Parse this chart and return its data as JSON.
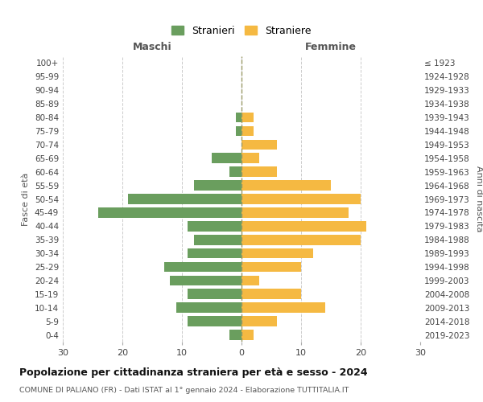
{
  "age_groups": [
    "0-4",
    "5-9",
    "10-14",
    "15-19",
    "20-24",
    "25-29",
    "30-34",
    "35-39",
    "40-44",
    "45-49",
    "50-54",
    "55-59",
    "60-64",
    "65-69",
    "70-74",
    "75-79",
    "80-84",
    "85-89",
    "90-94",
    "95-99",
    "100+"
  ],
  "birth_years": [
    "2019-2023",
    "2014-2018",
    "2009-2013",
    "2004-2008",
    "1999-2003",
    "1994-1998",
    "1989-1993",
    "1984-1988",
    "1979-1983",
    "1974-1978",
    "1969-1973",
    "1964-1968",
    "1959-1963",
    "1954-1958",
    "1949-1953",
    "1944-1948",
    "1939-1943",
    "1934-1938",
    "1929-1933",
    "1924-1928",
    "≤ 1923"
  ],
  "males": [
    2,
    9,
    11,
    9,
    12,
    13,
    9,
    8,
    9,
    24,
    19,
    8,
    2,
    5,
    0,
    1,
    1,
    0,
    0,
    0,
    0
  ],
  "females": [
    2,
    6,
    14,
    10,
    3,
    10,
    12,
    20,
    21,
    18,
    20,
    15,
    6,
    3,
    6,
    2,
    2,
    0,
    0,
    0,
    0
  ],
  "male_color": "#6a9e5e",
  "female_color": "#f5b942",
  "male_label": "Stranieri",
  "female_label": "Straniere",
  "xlabel_left": "Maschi",
  "xlabel_right": "Femmine",
  "ylabel_left": "Fasce di età",
  "ylabel_right": "Anni di nascita",
  "title": "Popolazione per cittadinanza straniera per età e sesso - 2024",
  "subtitle": "COMUNE DI PALIANO (FR) - Dati ISTAT al 1° gennaio 2024 - Elaborazione TUTTITALIA.IT",
  "xlim": 30,
  "background_color": "#ffffff",
  "grid_color": "#cccccc",
  "center_line_color": "#999966"
}
